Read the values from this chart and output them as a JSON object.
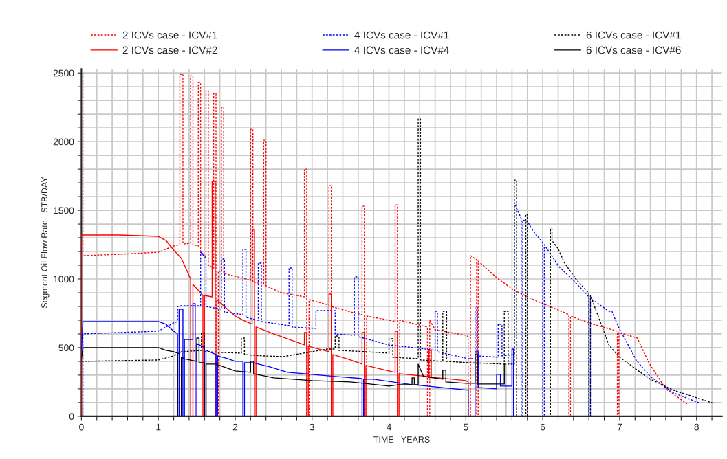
{
  "chart_data": {
    "type": "line",
    "xlabel": "TIME   YEARS",
    "ylabel": "Segment Oil Flow Rate   STB/DAY",
    "xlim": [
      0,
      8.33
    ],
    "ylim": [
      0,
      2530
    ],
    "xticks": [
      0,
      {
        "value": 0.2,
        "label": null
      },
      {
        "value": 0.4,
        "label": null
      },
      {
        "value": 0.6,
        "label": null
      },
      {
        "value": 0.8,
        "label": null
      },
      1,
      {
        "value": 1.2,
        "label": null
      },
      {
        "value": 1.4,
        "label": null
      },
      {
        "value": 1.6,
        "label": null
      },
      {
        "value": 1.8,
        "label": null
      },
      2,
      {
        "value": 2.2,
        "label": null
      },
      {
        "value": 2.4,
        "label": null
      },
      {
        "value": 2.6,
        "label": null
      },
      {
        "value": 2.8,
        "label": null
      },
      3,
      {
        "value": 3.2,
        "label": null
      },
      {
        "value": 3.4,
        "label": null
      },
      {
        "value": 3.6,
        "label": null
      },
      {
        "value": 3.8,
        "label": null
      },
      4,
      {
        "value": 4.2,
        "label": null
      },
      {
        "value": 4.4,
        "label": null
      },
      {
        "value": 4.6,
        "label": null
      },
      {
        "value": 4.8,
        "label": null
      },
      5,
      {
        "value": 5.2,
        "label": null
      },
      {
        "value": 5.4,
        "label": null
      },
      {
        "value": 5.6,
        "label": null
      },
      {
        "value": 5.8,
        "label": null
      },
      6,
      {
        "value": 6.2,
        "label": null
      },
      {
        "value": 6.4,
        "label": null
      },
      {
        "value": 6.6,
        "label": null
      },
      {
        "value": 6.8,
        "label": null
      },
      7,
      {
        "value": 7.2,
        "label": null
      },
      {
        "value": 7.4,
        "label": null
      },
      {
        "value": 7.6,
        "label": null
      },
      {
        "value": 7.8,
        "label": null
      },
      8,
      {
        "value": 8.2,
        "label": null
      }
    ],
    "yticks": [
      0,
      {
        "value": 100,
        "label": null
      },
      {
        "value": 200,
        "label": null
      },
      {
        "value": 300,
        "label": null
      },
      {
        "value": 400,
        "label": null
      },
      500,
      {
        "value": 600,
        "label": null
      },
      {
        "value": 700,
        "label": null
      },
      {
        "value": 800,
        "label": null
      },
      {
        "value": 900,
        "label": null
      },
      1000,
      {
        "value": 1100,
        "label": null
      },
      {
        "value": 1200,
        "label": null
      },
      {
        "value": 1300,
        "label": null
      },
      {
        "value": 1400,
        "label": null
      },
      1500,
      {
        "value": 1600,
        "label": null
      },
      {
        "value": 1700,
        "label": null
      },
      {
        "value": 1800,
        "label": null
      },
      {
        "value": 1900,
        "label": null
      },
      2000,
      {
        "value": 2100,
        "label": null
      },
      {
        "value": 2200,
        "label": null
      },
      {
        "value": 2300,
        "label": null
      },
      {
        "value": 2400,
        "label": null
      },
      2500
    ],
    "grid": true,
    "legend": "top",
    "marker": "none",
    "series": [
      {
        "name": "2 ICVs case - ICV#1",
        "color": "#ff0000",
        "line_style": "dotted",
        "x": [
          0.02,
          0.02,
          0.5,
          1.0,
          1.2,
          1.28,
          1.28,
          1.32,
          1.32,
          1.42,
          1.42,
          1.45,
          1.45,
          1.52,
          1.52,
          1.55,
          1.55,
          1.62,
          1.62,
          1.65,
          1.65,
          1.72,
          1.72,
          1.75,
          1.75,
          1.78,
          1.78,
          1.82,
          1.82,
          1.85,
          1.85,
          2.0,
          2.2,
          2.2,
          2.23,
          2.23,
          2.37,
          2.37,
          2.4,
          2.4,
          2.6,
          2.9,
          2.9,
          2.93,
          2.93,
          2.96,
          2.96,
          3.22,
          3.22,
          3.25,
          3.25,
          3.5,
          3.65,
          3.65,
          3.68,
          3.68,
          3.71,
          3.71,
          4.0,
          4.08,
          4.08,
          4.11,
          4.11,
          4.14,
          4.14,
          4.5,
          4.5,
          4.53,
          4.53,
          4.6,
          5.0,
          5.03,
          5.03,
          5.06,
          5.06,
          5.14,
          5.14,
          5.16,
          5.16,
          5.41,
          5.62,
          5.92,
          6.22,
          6.34,
          6.34,
          6.36,
          6.36,
          6.66,
          6.97,
          6.97,
          6.99,
          6.99,
          7.23,
          7.38,
          7.6,
          7.88
        ],
        "values": [
          2500,
          1170,
          1180,
          1195,
          1240,
          1250,
          2490,
          2490,
          1255,
          1260,
          2480,
          2480,
          1250,
          1240,
          2430,
          2430,
          1200,
          1160,
          2370,
          2370,
          1100,
          1080,
          2350,
          2350,
          0,
          0,
          1060,
          1050,
          2250,
          2250,
          1040,
          1020,
          990,
          2090,
          2090,
          980,
          960,
          2010,
          2010,
          950,
          900,
          870,
          1800,
          1800,
          0,
          0,
          850,
          810,
          1680,
          1680,
          800,
          760,
          740,
          1530,
          1530,
          0,
          0,
          730,
          700,
          690,
          1540,
          1540,
          0,
          0,
          700,
          650,
          0,
          0,
          700,
          630,
          590,
          580,
          0,
          0,
          1170,
          1140,
          0,
          0,
          1130,
          1005,
          920,
          840,
          770,
          740,
          0,
          0,
          730,
          670,
          620,
          0,
          0,
          610,
          570,
          390,
          200,
          90
        ]
      },
      {
        "name": "2 ICVs case - ICV#2",
        "color": "#ff0000",
        "line_style": "solid",
        "x": [
          0,
          0,
          0.5,
          1.0,
          1.1,
          1.2,
          1.3,
          1.38,
          1.42,
          1.42,
          1.45,
          1.45,
          1.55,
          1.58,
          1.58,
          1.6,
          1.6,
          1.7,
          1.7,
          1.74,
          1.74,
          1.76,
          1.76,
          1.9,
          2.0,
          2.1,
          2.22,
          2.22,
          2.25,
          2.25,
          2.27,
          2.27,
          2.5,
          2.9,
          2.9,
          2.93,
          2.93,
          2.95,
          2.95,
          3.22,
          3.22,
          3.25,
          3.25,
          3.27,
          3.27,
          3.5,
          3.65,
          3.65,
          3.68,
          3.68,
          3.7,
          3.7,
          4.0,
          4.08,
          4.08,
          4.11,
          4.11,
          4.13,
          4.13,
          4.5,
          4.52,
          4.52,
          4.55,
          4.55,
          5.0,
          5.03,
          5.03
        ],
        "values": [
          0,
          1320,
          1320,
          1310,
          1280,
          1210,
          1150,
          1050,
          1000,
          0,
          0,
          960,
          900,
          880,
          0,
          0,
          880,
          870,
          1710,
          1710,
          0,
          0,
          850,
          780,
          730,
          700,
          670,
          1360,
          1360,
          0,
          0,
          650,
          600,
          520,
          610,
          610,
          0,
          0,
          510,
          470,
          890,
          890,
          0,
          0,
          450,
          410,
          380,
          610,
          610,
          0,
          0,
          370,
          330,
          320,
          620,
          620,
          0,
          0,
          310,
          290,
          285,
          480,
          480,
          285,
          260,
          250,
          0
        ]
      },
      {
        "name": "4 ICVs case - ICV#1",
        "color": "#0000ff",
        "line_style": "dotted",
        "x": [
          0.02,
          0.02,
          0.5,
          1.0,
          1.1,
          1.2,
          1.25,
          1.25,
          1.3,
          1.3,
          1.55,
          1.55,
          1.62,
          1.62,
          1.82,
          1.82,
          1.86,
          1.86,
          2.1,
          2.1,
          2.14,
          2.14,
          2.3,
          2.3,
          2.34,
          2.34,
          2.7,
          2.7,
          2.74,
          2.74,
          3.05,
          3.05,
          3.3,
          3.3,
          3.55,
          3.55,
          3.6,
          3.6,
          4.0,
          4.4,
          4.6,
          4.6,
          4.63,
          4.63,
          5.03,
          5.12,
          5.12,
          5.15,
          5.15,
          5.42,
          5.42,
          5.47,
          5.47,
          5.63,
          5.63,
          5.72,
          5.72,
          5.74,
          5.74,
          5.8,
          5.88,
          6.0,
          6.0,
          6.02,
          6.02,
          6.21,
          6.39,
          6.6,
          6.6,
          6.62,
          6.62,
          6.86,
          6.9,
          6.98,
          7.22,
          7.4,
          7.7,
          8.05
        ],
        "values": [
          0,
          600,
          610,
          620,
          650,
          680,
          690,
          800,
          805,
          805,
          805,
          1195,
          1150,
          800,
          780,
          1145,
          1145,
          760,
          740,
          1215,
          1215,
          720,
          700,
          1115,
          1115,
          690,
          660,
          1080,
          1080,
          650,
          640,
          770,
          770,
          600,
          590,
          1015,
          1015,
          580,
          520,
          495,
          480,
          765,
          765,
          470,
          420,
          420,
          790,
          790,
          440,
          430,
          670,
          670,
          440,
          450,
          1555,
          1440,
          0,
          0,
          1430,
          1420,
          1345,
          1265,
          0,
          0,
          1250,
          1090,
          995,
          870,
          0,
          0,
          860,
          765,
          765,
          655,
          405,
          290,
          170,
          95
        ]
      },
      {
        "name": "4 ICVs case - ICV#4",
        "color": "#0000ff",
        "line_style": "solid",
        "x": [
          0,
          0.02,
          1.0,
          1.1,
          1.2,
          1.25,
          1.25,
          1.27,
          1.27,
          1.32,
          1.32,
          1.34,
          1.34,
          1.45,
          1.45,
          1.48,
          1.48,
          1.5,
          1.5,
          1.6,
          1.6,
          1.62,
          1.62,
          1.75,
          1.75,
          1.77,
          1.77,
          1.9,
          2.0,
          2.1,
          2.1,
          2.12,
          2.12,
          2.23,
          2.45,
          2.68,
          2.9,
          3.3,
          3.65,
          3.65,
          3.67,
          3.67,
          3.8,
          4.3,
          4.5,
          5.03,
          5.03,
          5.12,
          5.12,
          5.16,
          5.16,
          5.4,
          5.4,
          5.45,
          5.45,
          5.6,
          5.6,
          5.62,
          5.62
        ],
        "values": [
          480,
          690,
          690,
          670,
          620,
          600,
          0,
          0,
          780,
          780,
          0,
          0,
          560,
          560,
          820,
          820,
          0,
          0,
          530,
          500,
          0,
          0,
          480,
          450,
          0,
          0,
          440,
          420,
          400,
          400,
          0,
          0,
          390,
          390,
          360,
          320,
          310,
          290,
          275,
          0,
          0,
          270,
          270,
          230,
          220,
          190,
          0,
          0,
          470,
          470,
          210,
          200,
          305,
          305,
          220,
          220,
          490,
          490,
          0
        ]
      },
      {
        "name": "6 ICVs case - ICV#1",
        "color": "#000000",
        "line_style": "dotted",
        "x": [
          0,
          1.0,
          1.2,
          1.3,
          1.56,
          1.56,
          1.6,
          1.6,
          2.08,
          2.08,
          2.12,
          2.12,
          2.35,
          2.63,
          3.2,
          3.3,
          3.3,
          3.35,
          3.35,
          3.7,
          4.0,
          4.0,
          4.05,
          4.05,
          4.38,
          4.38,
          4.41,
          4.41,
          4.7,
          4.7,
          4.75,
          4.75,
          5.03,
          5.3,
          5.5,
          5.5,
          5.55,
          5.55,
          5.63,
          5.63,
          5.66,
          5.66,
          5.78,
          5.78,
          5.8,
          5.8,
          6.1,
          6.1,
          6.12,
          6.12,
          6.2,
          6.28,
          6.43,
          6.6,
          6.6,
          6.62,
          6.62,
          6.86,
          6.98,
          7.22,
          7.4,
          7.7,
          8.22
        ],
        "values": [
          400,
          410,
          440,
          470,
          480,
          605,
          605,
          470,
          460,
          570,
          570,
          450,
          440,
          435,
          490,
          490,
          585,
          585,
          480,
          470,
          460,
          565,
          565,
          430,
          420,
          2165,
          2165,
          410,
          400,
          765,
          765,
          400,
          390,
          385,
          380,
          765,
          765,
          380,
          380,
          1720,
          1720,
          0,
          0,
          1470,
          1470,
          0,
          0,
          1365,
          1365,
          1280,
          1220,
          1120,
          1000,
          895,
          0,
          0,
          880,
          520,
          440,
          340,
          270,
          190,
          95
        ]
      },
      {
        "name": "6 ICVs case - ICV#6",
        "color": "#000000",
        "line_style": "solid",
        "x": [
          0,
          0.02,
          1.0,
          1.1,
          1.2,
          1.25,
          1.25,
          1.3,
          1.3,
          1.32,
          1.32,
          1.5,
          1.5,
          1.53,
          1.53,
          1.6,
          1.6,
          1.62,
          1.62,
          1.75,
          2.0,
          2.2,
          2.2,
          2.24,
          2.24,
          2.5,
          3.0,
          3.5,
          4.0,
          4.13,
          4.3,
          4.3,
          4.33,
          4.33,
          4.38,
          4.38,
          4.45,
          4.7,
          4.7,
          4.74,
          4.74,
          5.0,
          5.12,
          5.12,
          5.15,
          5.15,
          5.3,
          5.5,
          5.5,
          5.52,
          5.52
        ],
        "values": [
          420,
          500,
          500,
          480,
          470,
          460,
          0,
          0,
          430,
          430,
          420,
          400,
          570,
          570,
          390,
          390,
          0,
          0,
          380,
          380,
          330,
          320,
          400,
          400,
          310,
          280,
          260,
          250,
          220,
          230,
          230,
          280,
          280,
          230,
          230,
          380,
          290,
          270,
          335,
          335,
          250,
          240,
          240,
          450,
          450,
          235,
          235,
          235,
          380,
          380,
          0
        ]
      }
    ]
  }
}
